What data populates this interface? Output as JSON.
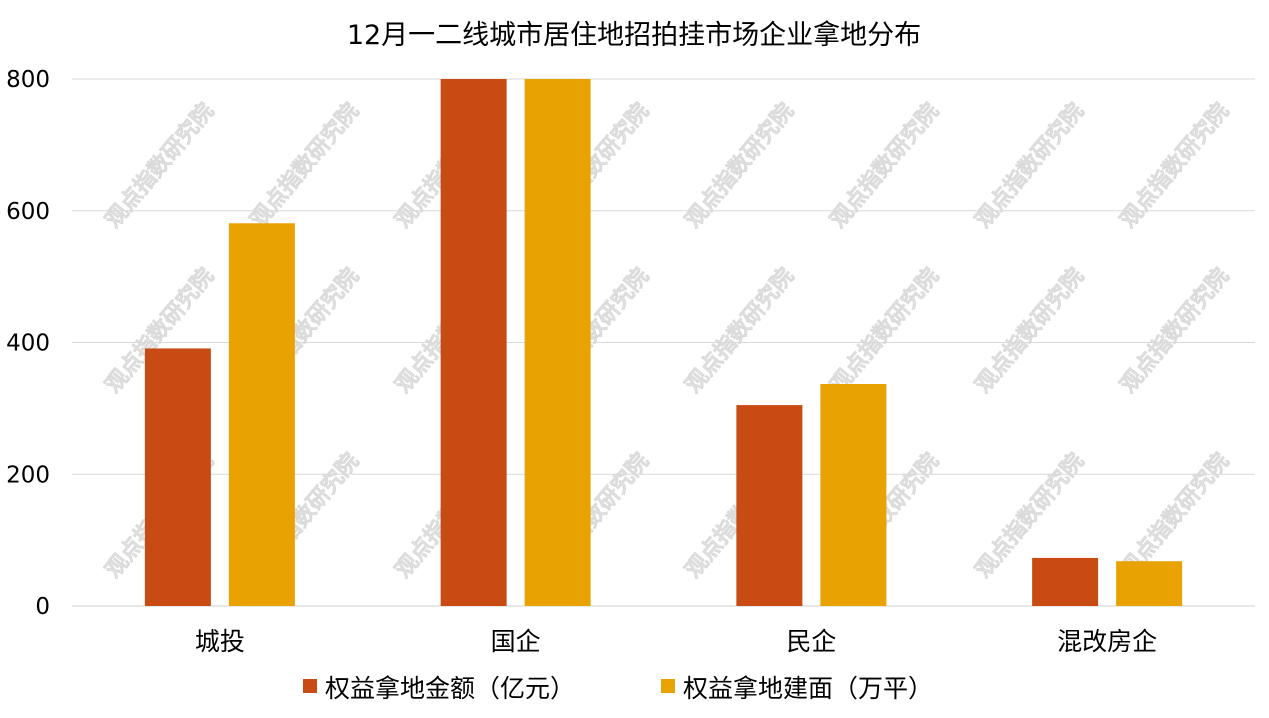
{
  "chart_data": {
    "type": "bar",
    "title": "12月一二线城市居住地招拍挂市场企业拿地分布",
    "categories": [
      "城投",
      "国企",
      "民企",
      "混改房企"
    ],
    "series": [
      {
        "name": "权益拿地金额（亿元）",
        "color": "#c84b14",
        "values": [
          391,
          800,
          305,
          73
        ]
      },
      {
        "name": "权益拿地建面（万平）",
        "color": "#e8a202",
        "values": [
          581,
          800,
          337,
          68
        ]
      }
    ],
    "ylim": [
      0,
      800
    ],
    "yticks": [
      0,
      200,
      400,
      600,
      800
    ],
    "xlabel": "",
    "ylabel": "",
    "grid": true,
    "legend_position": "bottom"
  },
  "watermark": {
    "text": "观点指数研究院"
  }
}
